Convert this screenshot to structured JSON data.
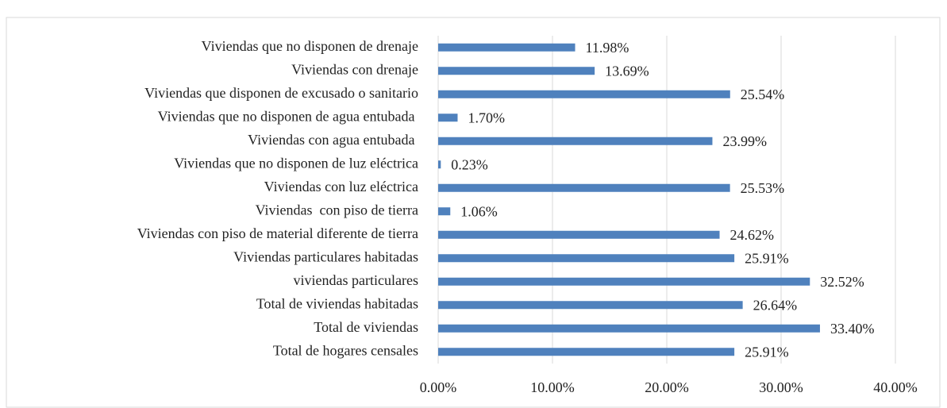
{
  "chart_data": {
    "type": "bar",
    "orientation": "horizontal",
    "categories": [
      "Viviendas que no disponen de drenaje",
      "Viviendas con drenaje",
      "Viviendas que disponen de excusado o sanitario",
      "Viviendas que no disponen de agua entubada ",
      "Viviendas con agua entubada ",
      "Viviendas que no disponen de luz eléctrica",
      "Viviendas con luz eléctrica",
      "Viviendas  con piso de tierra",
      "Viviendas con piso de material diferente de tierra",
      "Viviendas particulares habitadas",
      "viviendas particulares",
      "Total de viviendas habitadas",
      "Total de viviendas",
      "Total de hogares censales"
    ],
    "values": [
      11.98,
      13.69,
      25.54,
      1.7,
      23.99,
      0.23,
      25.53,
      1.06,
      24.62,
      25.91,
      32.52,
      26.64,
      33.4,
      25.91
    ],
    "value_labels": [
      "11.98%",
      "13.69%",
      "25.54%",
      "1.70%",
      "23.99%",
      "0.23%",
      "25.53%",
      "1.06%",
      "24.62%",
      "25.91%",
      "32.52%",
      "26.64%",
      "33.40%",
      "25.91%"
    ],
    "color": "#4f81bd",
    "xlim": [
      0,
      40
    ],
    "xticks": [
      {
        "value": 0,
        "label": "0.00%"
      },
      {
        "value": 10,
        "label": "10.00%"
      },
      {
        "value": 20,
        "label": "20.00%"
      },
      {
        "value": 30,
        "label": "30.00%"
      },
      {
        "value": 40,
        "label": "40.00%"
      }
    ],
    "grid": true
  }
}
